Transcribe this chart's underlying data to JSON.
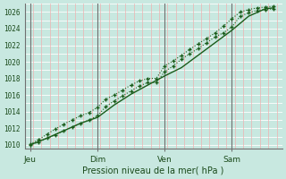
{
  "background_color": "#c8e8e0",
  "plot_bg_color": "#c8e8e0",
  "grid_color_h": "#ffffff",
  "grid_color_v": "#f0b0b0",
  "line_color": "#1a5c1a",
  "xlabel": "Pression niveau de la mer( hPa )",
  "ylim": [
    1009.5,
    1027.0
  ],
  "yticks": [
    1010,
    1012,
    1014,
    1016,
    1018,
    1020,
    1022,
    1024,
    1026
  ],
  "xtick_labels": [
    "Jeu",
    "Dim",
    "Ven",
    "Sam"
  ],
  "xtick_positions": [
    0,
    24,
    48,
    72
  ],
  "vlines_dark": [
    0,
    24,
    48,
    72
  ],
  "xlim": [
    -2,
    90
  ],
  "line1_x": [
    0,
    3,
    6,
    9,
    12,
    15,
    18,
    21,
    24,
    27,
    30,
    33,
    36,
    39,
    42,
    45,
    48,
    51,
    54,
    57,
    60,
    63,
    66,
    69,
    72,
    75,
    78,
    81,
    84,
    87
  ],
  "line1_y": [
    1010.1,
    1010.6,
    1011.3,
    1011.9,
    1012.5,
    1013.0,
    1013.5,
    1013.9,
    1014.5,
    1015.5,
    1016.0,
    1016.6,
    1017.2,
    1017.7,
    1018.0,
    1018.0,
    1019.5,
    1020.1,
    1020.8,
    1021.5,
    1022.2,
    1022.8,
    1023.5,
    1024.3,
    1025.2,
    1026.0,
    1026.3,
    1026.5,
    1026.6,
    1026.7
  ],
  "line2_x": [
    0,
    3,
    6,
    9,
    12,
    15,
    18,
    21,
    24,
    27,
    30,
    33,
    36,
    39,
    42,
    45,
    48,
    51,
    54,
    57,
    60,
    63,
    66,
    69,
    72,
    75,
    78,
    81,
    84,
    87
  ],
  "line2_y": [
    1010.0,
    1010.3,
    1010.8,
    1011.2,
    1011.7,
    1012.1,
    1012.6,
    1013.0,
    1013.5,
    1014.6,
    1015.3,
    1015.9,
    1016.5,
    1017.1,
    1017.5,
    1017.5,
    1018.8,
    1019.5,
    1020.3,
    1021.0,
    1021.6,
    1022.3,
    1023.0,
    1023.5,
    1024.2,
    1025.5,
    1025.9,
    1026.2,
    1026.3,
    1026.4
  ],
  "line3_x": [
    0,
    6,
    12,
    18,
    24,
    30,
    36,
    42,
    48,
    54,
    60,
    66,
    72,
    78,
    84,
    87
  ],
  "line3_y": [
    1010.0,
    1010.8,
    1011.7,
    1012.6,
    1013.3,
    1014.8,
    1016.1,
    1017.2,
    1018.3,
    1019.3,
    1020.8,
    1022.3,
    1023.8,
    1025.5,
    1026.4,
    1026.5
  ],
  "figsize": [
    3.2,
    2.0
  ],
  "dpi": 100
}
